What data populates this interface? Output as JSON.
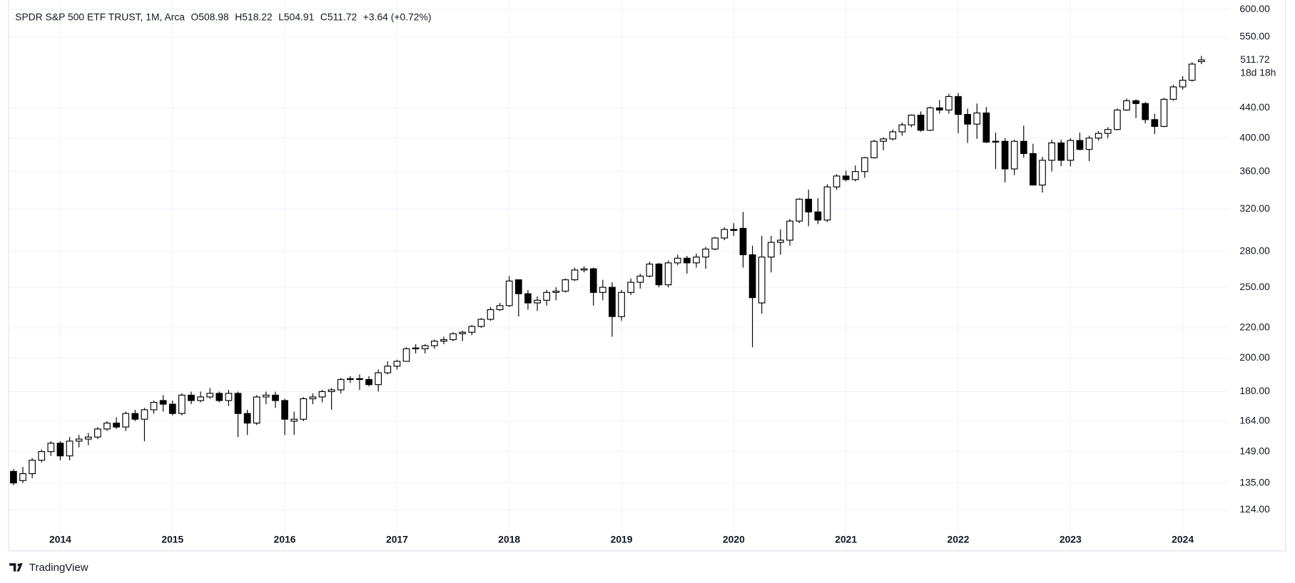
{
  "chart_data": {
    "type": "candlestick",
    "title": "SPDR S&P 500 ETF TRUST, 1M, Arca",
    "ohlc_prefixes": [
      "O",
      "H",
      "L",
      "C"
    ],
    "change": "+3.64 (+0.72%)",
    "countdown": "18d 18h",
    "brand": "TradingView",
    "log_scale": true,
    "grid": true,
    "up_color": "#ffffff",
    "down_color": "#000000",
    "wick_color": "#000000",
    "grid_color": "#f0f3fa",
    "ylim": [
      109,
      618
    ],
    "yticks": [
      {
        "value": 124,
        "label": "124.00"
      },
      {
        "value": 135,
        "label": "135.00"
      },
      {
        "value": 149,
        "label": "149.00"
      },
      {
        "value": 164,
        "label": "164.00"
      },
      {
        "value": 180,
        "label": "180.00"
      },
      {
        "value": 200,
        "label": "200.00"
      },
      {
        "value": 220,
        "label": "220.00"
      },
      {
        "value": 250,
        "label": "250.00"
      },
      {
        "value": 280,
        "label": "280.00"
      },
      {
        "value": 320,
        "label": "320.00"
      },
      {
        "value": 360,
        "label": "360.00"
      },
      {
        "value": 400,
        "label": "400.00"
      },
      {
        "value": 440,
        "label": "440.00"
      },
      {
        "value": 550,
        "label": "550.00"
      },
      {
        "value": 600,
        "label": "600.00"
      }
    ],
    "categories": [
      null,
      null,
      null,
      null,
      null,
      "2014",
      null,
      null,
      null,
      null,
      null,
      null,
      null,
      null,
      null,
      null,
      null,
      "2015",
      null,
      null,
      null,
      null,
      null,
      null,
      null,
      null,
      null,
      null,
      null,
      "2016",
      null,
      null,
      null,
      null,
      null,
      null,
      null,
      null,
      null,
      null,
      null,
      "2017",
      null,
      null,
      null,
      null,
      null,
      null,
      null,
      null,
      null,
      null,
      null,
      "2018",
      null,
      null,
      null,
      null,
      null,
      null,
      null,
      null,
      null,
      null,
      null,
      "2019",
      null,
      null,
      null,
      null,
      null,
      null,
      null,
      null,
      null,
      null,
      null,
      "2020",
      null,
      null,
      null,
      null,
      null,
      null,
      null,
      null,
      null,
      null,
      null,
      "2021",
      null,
      null,
      null,
      null,
      null,
      null,
      null,
      null,
      null,
      null,
      null,
      "2022",
      null,
      null,
      null,
      null,
      null,
      null,
      null,
      null,
      null,
      null,
      null,
      "2023",
      null,
      null,
      null,
      null,
      null,
      null,
      null,
      null,
      null,
      null,
      null,
      "2024",
      null,
      null
    ],
    "series": [
      {
        "open": [
          140,
          136,
          139,
          145,
          149,
          153,
          147,
          154,
          155,
          156,
          160,
          163,
          161,
          168,
          165,
          170,
          175,
          173,
          168,
          178,
          175,
          177,
          179,
          175,
          179,
          168,
          163,
          177,
          178,
          175,
          164,
          165,
          176,
          177,
          180,
          181,
          187,
          187.5,
          187,
          184,
          191,
          195,
          198,
          206,
          206,
          208,
          211,
          212,
          216,
          217,
          221,
          226,
          233,
          236,
          256,
          245,
          238,
          240,
          246,
          247,
          256,
          264,
          265,
          246,
          250,
          228,
          246,
          254,
          259,
          269,
          252,
          270,
          274,
          270,
          275,
          282,
          292,
          300,
          301,
          277,
          238,
          275,
          288,
          290,
          308,
          330,
          317,
          309,
          343,
          355,
          351,
          360,
          376,
          396,
          399,
          408,
          417,
          430,
          410,
          440,
          437,
          456,
          431,
          418,
          433,
          395,
          396,
          363,
          396,
          381,
          345,
          373,
          394,
          373,
          397,
          386,
          400,
          406,
          411,
          437,
          450,
          446,
          424,
          415,
          452,
          470,
          480,
          508.98
        ],
        "high": [
          141,
          142,
          146,
          150,
          154,
          154,
          156,
          157,
          158,
          161,
          164,
          166,
          169,
          170,
          171,
          175,
          178,
          175,
          179,
          180,
          180,
          182,
          180,
          181,
          180,
          170,
          178,
          180,
          180,
          176,
          169,
          177,
          179,
          181,
          182,
          188,
          189,
          190,
          189,
          193,
          198,
          199,
          207,
          209,
          209,
          212,
          214,
          217,
          218,
          222,
          227,
          235,
          238,
          259,
          256,
          248,
          243,
          248,
          250,
          257,
          266,
          267,
          266,
          256,
          254,
          248,
          257,
          261,
          271,
          270,
          272,
          277,
          276,
          278,
          284,
          293,
          302,
          306,
          317,
          285,
          294,
          294,
          300,
          310,
          331,
          340,
          331,
          346,
          357,
          361,
          367,
          377,
          398,
          401,
          411,
          420,
          431,
          435,
          442,
          451,
          460,
          461,
          439,
          446,
          441,
          407,
          400,
          398,
          416,
          393,
          377,
          398,
          398,
          400,
          407,
          403,
          409,
          414,
          439,
          453,
          452,
          448,
          432,
          454,
          473,
          486,
          508,
          518.22
        ],
        "low": [
          134,
          135,
          137,
          144,
          147,
          145,
          145,
          151,
          152,
          155,
          159,
          160,
          159,
          164,
          154,
          168,
          169,
          167,
          167,
          173,
          174,
          176,
          174,
          172,
          156,
          157,
          162,
          173,
          171,
          157,
          157,
          164,
          173,
          174,
          170,
          179,
          185,
          181,
          183,
          180,
          190,
          193,
          198,
          203,
          203,
          206,
          209,
          211,
          211,
          215,
          220,
          225,
          232,
          235,
          228,
          233,
          232,
          236,
          240,
          246,
          255,
          262,
          236,
          240,
          214,
          225,
          244,
          249,
          258,
          250,
          250,
          268,
          261,
          266,
          265,
          281,
          290,
          294,
          266,
          207,
          230,
          262,
          277,
          285,
          306,
          303,
          305,
          307,
          340,
          349,
          349,
          353,
          375,
          385,
          397,
          403,
          414,
          408,
          409,
          432,
          432,
          406,
          394,
          399,
          394,
          363,
          348,
          356,
          376,
          345,
          337,
          360,
          366,
          366,
          385,
          372,
          397,
          400,
          410,
          436,
          426,
          419,
          405,
          414,
          450,
          466,
          478,
          504.91
        ],
        "close": [
          135,
          139,
          145,
          149,
          153,
          147,
          154,
          155,
          156,
          160,
          163,
          161,
          168,
          165,
          170,
          174,
          173,
          168,
          178,
          175,
          177,
          179,
          175,
          179,
          168,
          163,
          177,
          178,
          175,
          165,
          165,
          176,
          177,
          180,
          181,
          187,
          187.5,
          187,
          184,
          191,
          195,
          198,
          206,
          206.5,
          208,
          211,
          212,
          216,
          217,
          221,
          226,
          233,
          236,
          255,
          245,
          238,
          240,
          246,
          247,
          256,
          264,
          265,
          246,
          250,
          228,
          246,
          254,
          259,
          269,
          252,
          270,
          274,
          270,
          275,
          282,
          292,
          300,
          299,
          277,
          242,
          275,
          288,
          290,
          308,
          330,
          317,
          309,
          343,
          355,
          351,
          360,
          376,
          396,
          399,
          408,
          417,
          430,
          410,
          440,
          437,
          456,
          431,
          418,
          433,
          395,
          396,
          363,
          396,
          381,
          345,
          373,
          394,
          373,
          397,
          386,
          400,
          406,
          411,
          437,
          450,
          446,
          424,
          415,
          452,
          470,
          480,
          505,
          511.72
        ]
      }
    ]
  }
}
